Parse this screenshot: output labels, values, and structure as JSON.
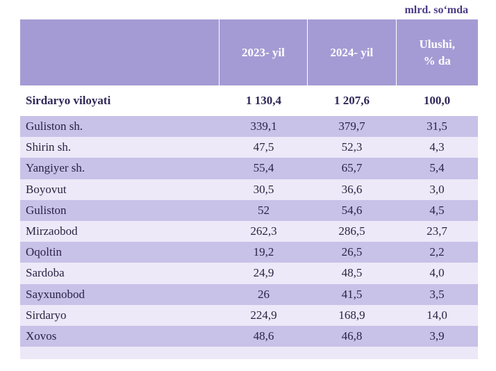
{
  "unit_label": "mlrd. so‘mda",
  "table": {
    "headers": [
      "",
      "2023- yil",
      "2024- yil",
      "Ulushi,\n% da"
    ],
    "total": {
      "name": "Sirdaryo viloyati",
      "v2023": "1 130,4",
      "v2024": "1 207,6",
      "share": "100,0"
    },
    "rows": [
      {
        "name": "Guliston sh.",
        "v2023": "339,1",
        "v2024": "379,7",
        "share": "31,5"
      },
      {
        "name": "Shirin sh.",
        "v2023": "47,5",
        "v2024": "52,3",
        "share": "4,3"
      },
      {
        "name": "Yangiyer sh.",
        "v2023": "55,4",
        "v2024": "65,7",
        "share": "5,4"
      },
      {
        "name": "Boyovut",
        "v2023": "30,5",
        "v2024": "36,6",
        "share": "3,0"
      },
      {
        "name": "Guliston",
        "v2023": "52",
        "v2024": "54,6",
        "share": "4,5"
      },
      {
        "name": "Mirzaobod",
        "v2023": "262,3",
        "v2024": "286,5",
        "share": "23,7"
      },
      {
        "name": "Oqoltin",
        "v2023": "19,2",
        "v2024": "26,5",
        "share": "2,2"
      },
      {
        "name": "Sardoba",
        "v2023": "24,9",
        "v2024": "48,5",
        "share": "4,0"
      },
      {
        "name": "Sayxunobod",
        "v2023": "26",
        "v2024": "41,5",
        "share": "3,5"
      },
      {
        "name": "Sirdaryo",
        "v2023": "224,9",
        "v2024": "168,9",
        "share": "14,0"
      },
      {
        "name": "Xovos",
        "v2023": "48,6",
        "v2024": "46,8",
        "share": "3,9"
      }
    ]
  },
  "colors": {
    "header": "#a59bd4",
    "shade": "#c8c1e8",
    "light": "#ede9f8",
    "unit_text": "#4b3a86"
  }
}
